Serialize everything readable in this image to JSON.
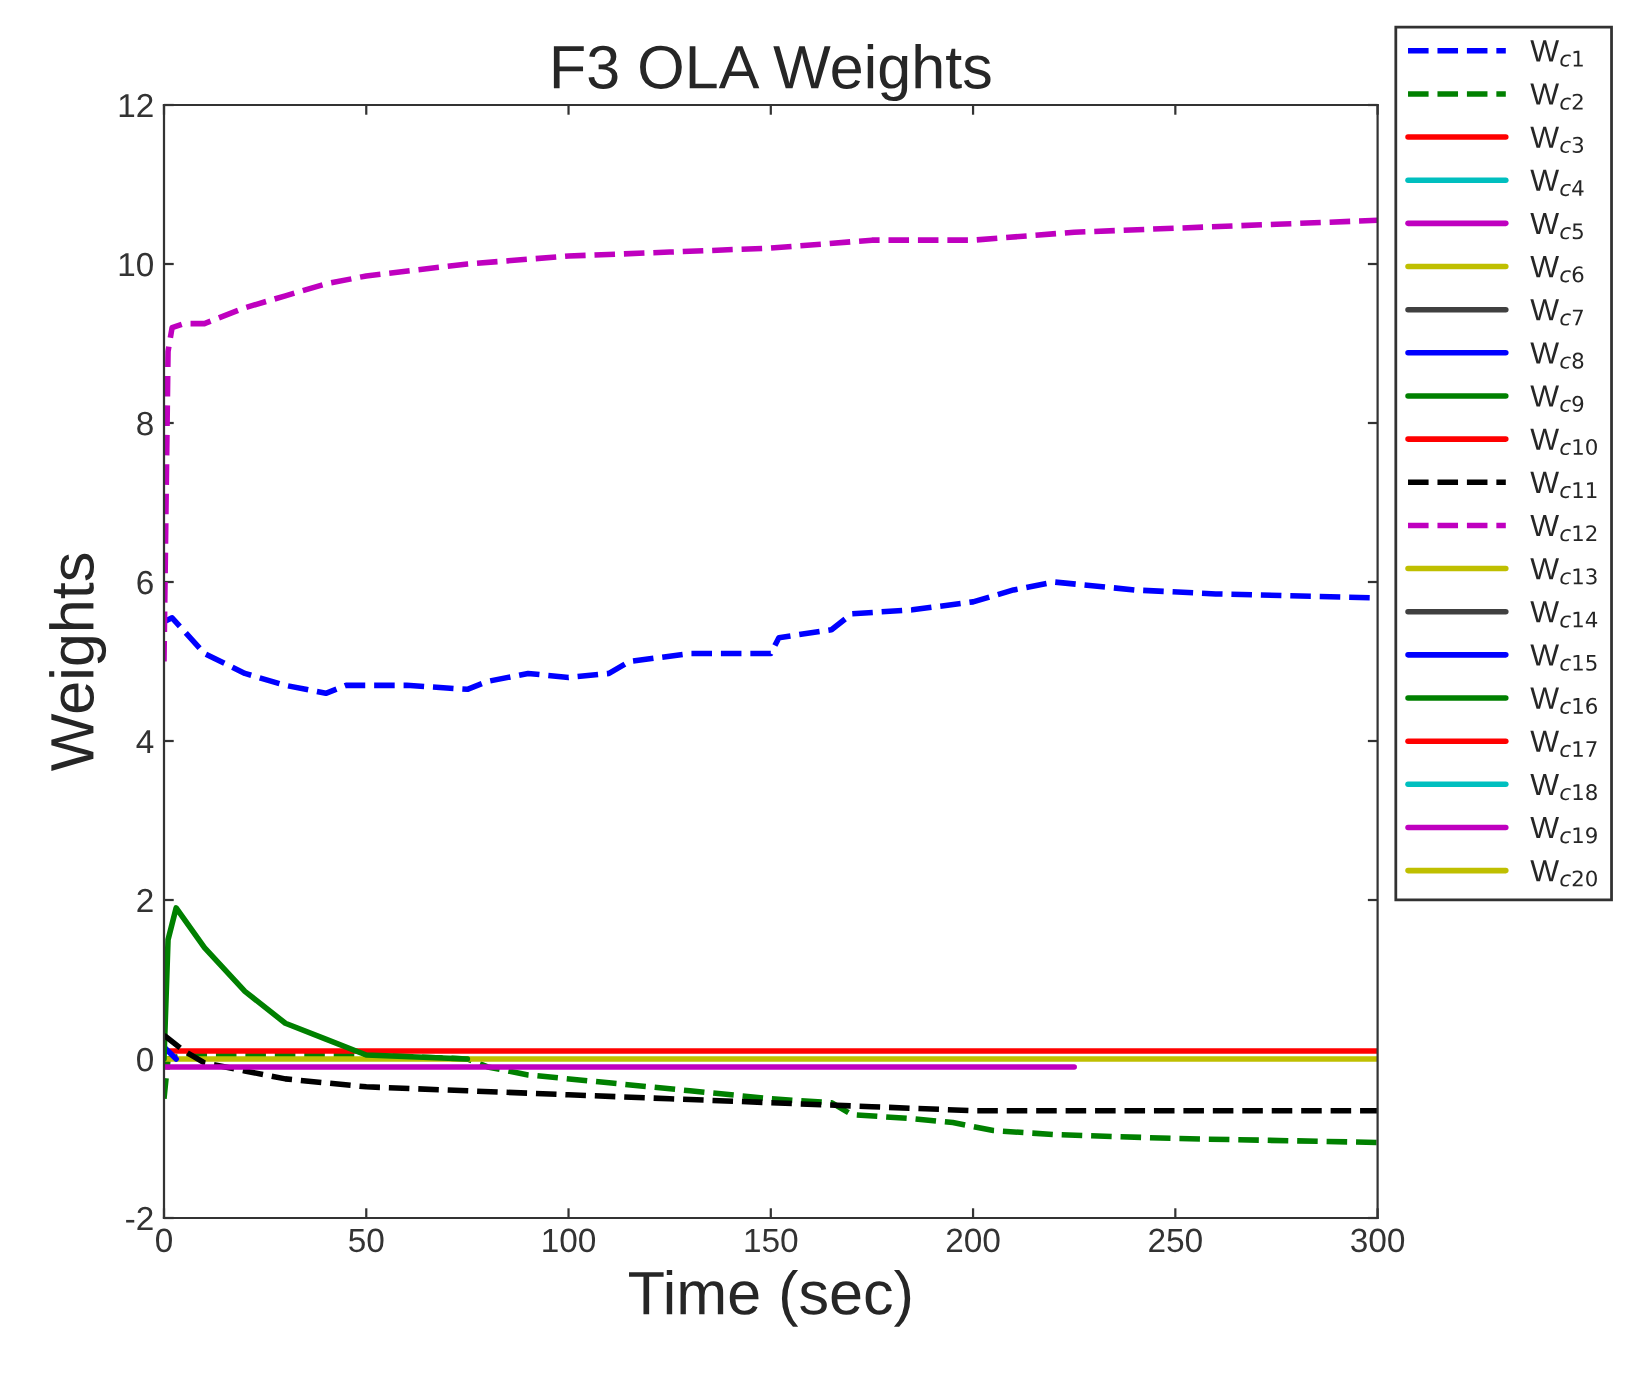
{
  "chart_data": {
    "type": "line",
    "title": "F3 OLA Weights",
    "xlabel": "Time (sec)",
    "ylabel": "Weights",
    "xlim": [
      0,
      300
    ],
    "ylim": [
      -2,
      12
    ],
    "xticks": [
      0,
      50,
      100,
      150,
      200,
      250,
      300
    ],
    "yticks": [
      -2,
      0,
      2,
      4,
      6,
      8,
      10,
      12
    ],
    "grid": false,
    "legend": "right",
    "marker": "none",
    "series": [
      {
        "name": "W$_{c1}$",
        "color": "#0000ff",
        "line_style": "dashed",
        "x": [
          0,
          2,
          10,
          20,
          30,
          40,
          45,
          60,
          75,
          80,
          90,
          100,
          110,
          115,
          130,
          150,
          152,
          165,
          170,
          185,
          200,
          210,
          220,
          240,
          260,
          300
        ],
        "values": [
          5.5,
          5.55,
          5.1,
          4.85,
          4.7,
          4.6,
          4.7,
          4.7,
          4.65,
          4.75,
          4.85,
          4.8,
          4.85,
          5.0,
          5.1,
          5.1,
          5.3,
          5.4,
          5.6,
          5.65,
          5.75,
          5.9,
          6.0,
          5.9,
          5.85,
          5.8
        ]
      },
      {
        "name": "W$_{c2}$",
        "color": "#008000",
        "line_style": "dashed",
        "x": [
          0,
          1,
          5,
          50,
          75,
          80,
          90,
          110,
          130,
          150,
          165,
          170,
          185,
          195,
          205,
          220,
          250,
          300
        ],
        "values": [
          -0.5,
          0.0,
          0.05,
          0.05,
          0.0,
          -0.1,
          -0.2,
          -0.3,
          -0.4,
          -0.5,
          -0.55,
          -0.7,
          -0.75,
          -0.8,
          -0.9,
          -0.95,
          -1.0,
          -1.05
        ]
      },
      {
        "name": "W$_{c3}$",
        "color": "#ff0000",
        "line_style": "solid",
        "x": [
          0,
          300
        ],
        "values": [
          0.1,
          0.1
        ]
      },
      {
        "name": "W$_{c4}$",
        "color": "#00bfbf",
        "line_style": "solid"
      },
      {
        "name": "W$_{c5}$",
        "color": "#bf00bf",
        "line_style": "solid"
      },
      {
        "name": "W$_{c6}$",
        "color": "#bfbf00",
        "line_style": "solid",
        "x": [
          0,
          300
        ],
        "values": [
          0.0,
          0.0
        ]
      },
      {
        "name": "W$_{c7}$",
        "color": "#404040",
        "line_style": "solid"
      },
      {
        "name": "W$_{c8}$",
        "color": "#0000ff",
        "line_style": "solid",
        "x": [
          0,
          3
        ],
        "values": [
          0.15,
          0.0
        ]
      },
      {
        "name": "W$_{c9}$",
        "color": "#008000",
        "line_style": "solid",
        "x": [
          0,
          1,
          3,
          10,
          20,
          30,
          40,
          50,
          75
        ],
        "values": [
          0.0,
          1.5,
          1.9,
          1.4,
          0.85,
          0.45,
          0.25,
          0.05,
          0.0
        ]
      },
      {
        "name": "W$_{c10}$",
        "color": "#ff0000",
        "line_style": "solid"
      },
      {
        "name": "W$_{c11}$",
        "color": "#000000",
        "line_style": "dashed",
        "x": [
          0,
          5,
          10,
          20,
          30,
          50,
          75,
          100,
          125,
          150,
          175,
          200,
          250,
          300
        ],
        "values": [
          0.3,
          0.1,
          -0.05,
          -0.15,
          -0.25,
          -0.35,
          -0.4,
          -0.45,
          -0.5,
          -0.55,
          -0.6,
          -0.65,
          -0.65,
          -0.65
        ]
      },
      {
        "name": "W$_{c12}$",
        "color": "#bf00bf",
        "line_style": "dashed",
        "x": [
          0,
          1,
          2,
          5,
          10,
          20,
          30,
          40,
          50,
          75,
          100,
          125,
          150,
          175,
          200,
          225,
          250,
          275,
          300
        ],
        "values": [
          5.0,
          8.9,
          9.2,
          9.25,
          9.25,
          9.45,
          9.6,
          9.75,
          9.85,
          10.0,
          10.1,
          10.15,
          10.2,
          10.3,
          10.3,
          10.4,
          10.45,
          10.5,
          10.55
        ]
      },
      {
        "name": "W$_{c13}$",
        "color": "#bfbf00",
        "line_style": "solid"
      },
      {
        "name": "W$_{c14}$",
        "color": "#404040",
        "line_style": "solid"
      },
      {
        "name": "W$_{c15}$",
        "color": "#0000ff",
        "line_style": "solid"
      },
      {
        "name": "W$_{c16}$",
        "color": "#008000",
        "line_style": "solid"
      },
      {
        "name": "W$_{c17}$",
        "color": "#ff0000",
        "line_style": "solid"
      },
      {
        "name": "W$_{c18}$",
        "color": "#00bfbf",
        "line_style": "solid"
      },
      {
        "name": "W$_{c19}$",
        "color": "#bf00bf",
        "line_style": "solid",
        "x": [
          0,
          225
        ],
        "values": [
          -0.1,
          -0.1
        ]
      },
      {
        "name": "W$_{c20}$",
        "color": "#bfbf00",
        "line_style": "solid"
      }
    ]
  }
}
